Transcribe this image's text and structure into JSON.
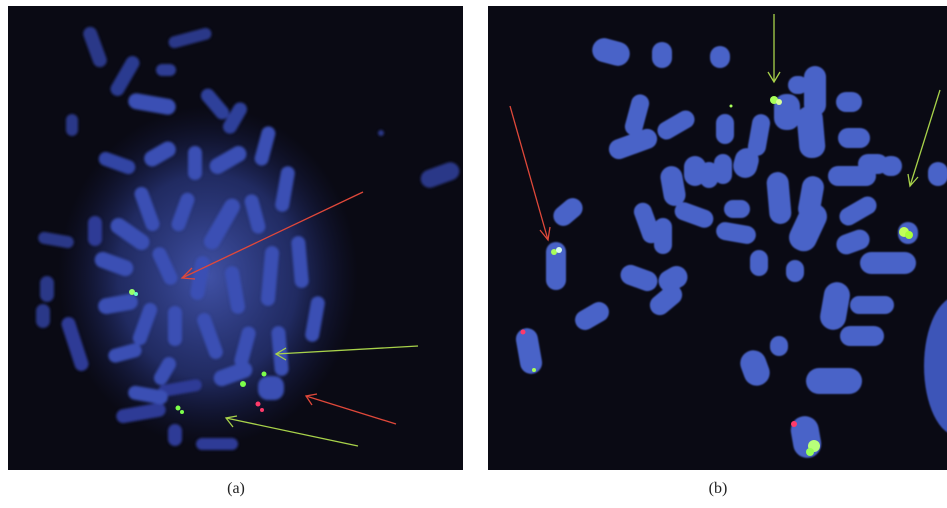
{
  "figure": {
    "panels": [
      {
        "id": "a",
        "caption": "(a)",
        "description_colors": {
          "background": "#0a0a14",
          "chromosome": "#3a4fb0",
          "nucleus_glow": "#3848a8",
          "green_signal": "#7dff4a",
          "red_signal": "#ff3a6a",
          "green_arrow": "#a8d24a",
          "red_arrow": "#e0483a"
        }
      },
      {
        "id": "b",
        "caption": "(b)",
        "description_colors": {
          "background": "#0a0a14",
          "chromosome": "#4a63c8",
          "green_signal": "#a8ff5a",
          "red_signal": "#ff3a6a",
          "green_arrow": "#a8d24a",
          "red_arrow": "#e0483a"
        }
      }
    ]
  }
}
